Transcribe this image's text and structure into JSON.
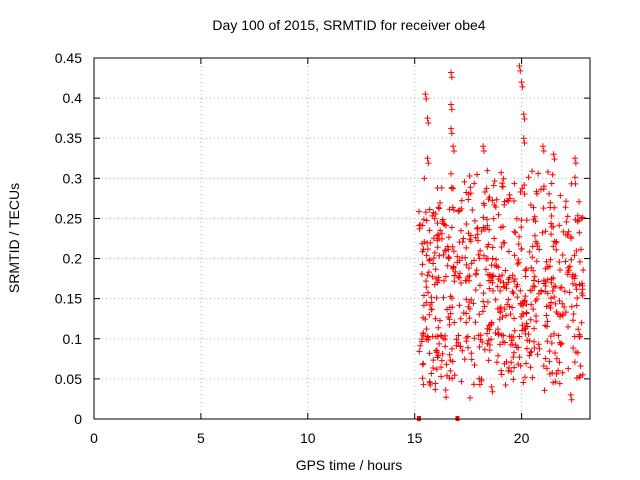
{
  "chart_data": {
    "type": "scatter",
    "title": "Day 100 of 2015, SRMTID for receiver obe4",
    "xlabel": "GPS time / hours",
    "ylabel": "SRMTID / TECUs",
    "xlim": [
      0,
      23.2
    ],
    "ylim": [
      0,
      0.45
    ],
    "xticks": [
      0,
      5,
      10,
      15,
      20
    ],
    "yticks": [
      0,
      0.05,
      0.1,
      0.15,
      0.2,
      0.25,
      0.3,
      0.35,
      0.4,
      0.45
    ],
    "grid": true,
    "legend": "none",
    "marker": "plus",
    "color": "#ff0000",
    "series": [
      {
        "name": "SRMTID",
        "x_range": [
          15.2,
          22.9
        ],
        "y_range": [
          0.025,
          0.44
        ],
        "approx_points": 700,
        "highlighted_values": [
          {
            "x": 15.5,
            "y": 0.405
          },
          {
            "x": 15.6,
            "y": 0.375
          },
          {
            "x": 15.6,
            "y": 0.325
          },
          {
            "x": 16.7,
            "y": 0.432
          },
          {
            "x": 16.7,
            "y": 0.392
          },
          {
            "x": 16.7,
            "y": 0.362
          },
          {
            "x": 16.8,
            "y": 0.34
          },
          {
            "x": 18.2,
            "y": 0.34
          },
          {
            "x": 19.9,
            "y": 0.44
          },
          {
            "x": 20.0,
            "y": 0.42
          },
          {
            "x": 20.1,
            "y": 0.38
          },
          {
            "x": 20.1,
            "y": 0.35
          },
          {
            "x": 21.0,
            "y": 0.34
          },
          {
            "x": 21.5,
            "y": 0.33
          },
          {
            "x": 22.5,
            "y": 0.325
          },
          {
            "x": 18.6,
            "y": 0.04
          },
          {
            "x": 22.3,
            "y": 0.03
          }
        ],
        "zero_markers": [
          15.2,
          17.0
        ]
      }
    ]
  }
}
